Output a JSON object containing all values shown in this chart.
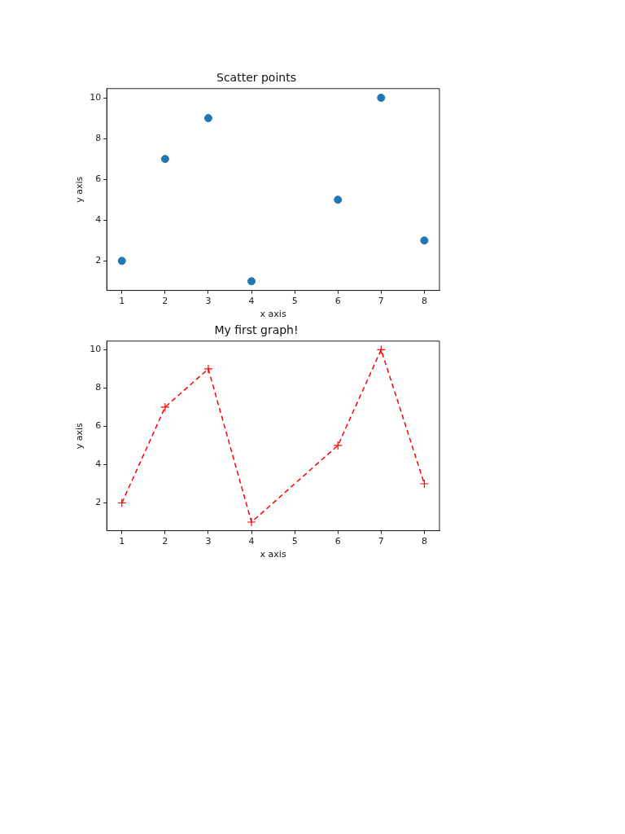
{
  "chart_data": [
    {
      "type": "scatter",
      "title": "Scatter points",
      "xlabel": "x axis",
      "ylabel": "y axis",
      "x": [
        1,
        2,
        3,
        4,
        6,
        7,
        8
      ],
      "values": [
        2,
        7,
        9,
        1,
        5,
        10,
        3
      ],
      "color": "#1f77b4",
      "marker": "circle",
      "xlim": [
        0.65,
        8.35
      ],
      "ylim": [
        0.55,
        10.45
      ],
      "xticks": [
        1,
        2,
        3,
        4,
        5,
        6,
        7,
        8
      ],
      "yticks": [
        2,
        4,
        6,
        8,
        10
      ],
      "grid": false,
      "legend": false
    },
    {
      "type": "line",
      "title": "My first graph!",
      "xlabel": "x axis",
      "ylabel": "y axis",
      "x": [
        1,
        2,
        3,
        4,
        6,
        7,
        8
      ],
      "values": [
        2,
        7,
        9,
        1,
        5,
        10,
        3
      ],
      "color": "#ff0000",
      "marker": "cross",
      "line_style": "dashed",
      "xlim": [
        0.65,
        8.35
      ],
      "ylim": [
        0.55,
        10.45
      ],
      "xticks": [
        1,
        2,
        3,
        4,
        5,
        6,
        7,
        8
      ],
      "yticks": [
        2,
        4,
        6,
        8,
        10
      ],
      "grid": false,
      "legend": false
    }
  ]
}
